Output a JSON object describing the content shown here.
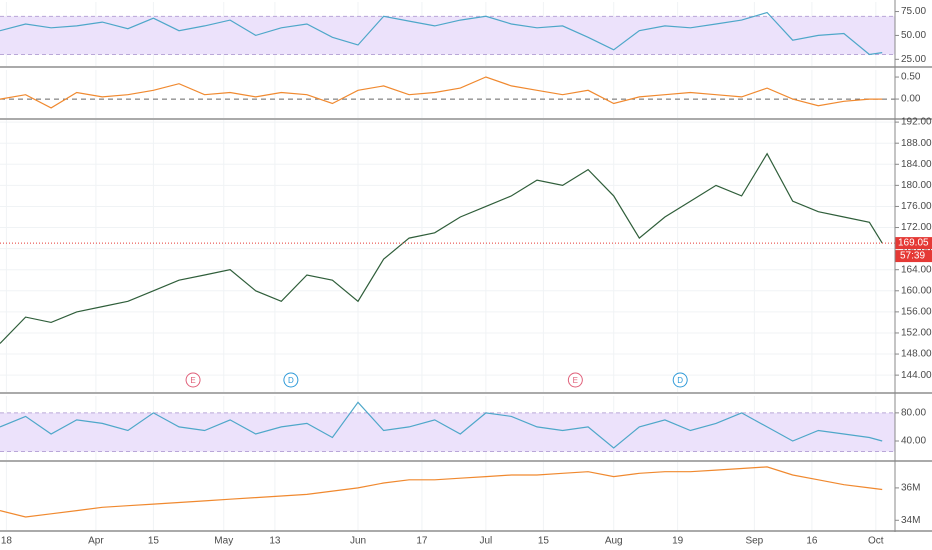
{
  "chart_data": [
    {
      "type": "line",
      "color": "#4ea7c9",
      "band": [
        30,
        70
      ],
      "band_color": "#ece2fb",
      "x": [
        0,
        4,
        8,
        12,
        16,
        20,
        24,
        28,
        32,
        36,
        40,
        44,
        48,
        52,
        56,
        60,
        64,
        68,
        72,
        76,
        80,
        84,
        88,
        92,
        96,
        100,
        104,
        108,
        112,
        116,
        120,
        124,
        128,
        132,
        136,
        138
      ],
      "values": [
        55,
        62,
        58,
        60,
        64,
        57,
        68,
        55,
        60,
        66,
        50,
        58,
        62,
        48,
        40,
        70,
        65,
        60,
        66,
        70,
        62,
        58,
        60,
        48,
        35,
        55,
        60,
        58,
        62,
        66,
        74,
        45,
        50,
        52,
        30,
        32
      ],
      "ylim": [
        18,
        85
      ],
      "yticks": [
        {
          "value": 75,
          "label": "75.00"
        },
        {
          "value": 50,
          "label": "50.00"
        },
        {
          "value": 25,
          "label": "25.00"
        }
      ]
    },
    {
      "type": "line",
      "color": "#f0892f",
      "reference_line": 0,
      "x": [
        0,
        4,
        8,
        12,
        16,
        20,
        24,
        28,
        32,
        36,
        40,
        44,
        48,
        52,
        56,
        60,
        64,
        68,
        72,
        76,
        80,
        84,
        88,
        92,
        96,
        100,
        104,
        108,
        112,
        116,
        120,
        124,
        128,
        132,
        136,
        138
      ],
      "values": [
        0,
        0.1,
        -0.2,
        0.15,
        0.05,
        0.1,
        0.2,
        0.35,
        0.1,
        0.15,
        0.05,
        0.15,
        0.1,
        -0.1,
        0.2,
        0.3,
        0.1,
        0.15,
        0.25,
        0.5,
        0.3,
        0.2,
        0.1,
        0.2,
        -0.1,
        0.05,
        0.1,
        0.15,
        0.1,
        0.05,
        0.25,
        0,
        -0.15,
        -0.05,
        0,
        0
      ],
      "ylim": [
        -0.43,
        0.66
      ],
      "yticks": [
        {
          "value": 0.5,
          "label": "0.50"
        },
        {
          "value": 0,
          "label": "0.00"
        }
      ]
    },
    {
      "type": "line",
      "color": "#2f5e3a",
      "last_price": 169.05,
      "last_price_color": "#e53935",
      "countdown": "57:39",
      "events": [
        {
          "label": "E",
          "x": 30.2,
          "color": "#e0607a"
        },
        {
          "label": "D",
          "x": 45.5,
          "color": "#2f9ad8"
        },
        {
          "label": "E",
          "x": 90,
          "color": "#e0607a"
        },
        {
          "label": "D",
          "x": 106.4,
          "color": "#2f9ad8"
        }
      ],
      "x": [
        0,
        4,
        8,
        12,
        16,
        20,
        24,
        28,
        32,
        36,
        40,
        44,
        48,
        52,
        56,
        60,
        64,
        68,
        72,
        76,
        80,
        84,
        88,
        92,
        96,
        100,
        104,
        108,
        112,
        116,
        120,
        124,
        128,
        132,
        136,
        138
      ],
      "values": [
        150,
        155,
        154,
        156,
        157,
        158,
        160,
        162,
        163,
        164,
        160,
        158,
        163,
        162,
        158,
        166,
        170,
        171,
        174,
        176,
        178,
        181,
        180,
        183,
        178,
        170,
        174,
        177,
        180,
        178,
        186,
        177,
        175,
        174,
        173,
        169.05
      ],
      "ylim": [
        140.8,
        192.4
      ],
      "yticks": [
        {
          "value": 144,
          "label": "144.00"
        },
        {
          "value": 148,
          "label": "148.00"
        },
        {
          "value": 152,
          "label": "152.00"
        },
        {
          "value": 156,
          "label": "156.00"
        },
        {
          "value": 160,
          "label": "160.00"
        },
        {
          "value": 164,
          "label": "164.00"
        },
        {
          "value": 168,
          "label": "168.00"
        },
        {
          "value": 172,
          "label": "172.00"
        },
        {
          "value": 176,
          "label": "176.00"
        },
        {
          "value": 180,
          "label": "180.00"
        },
        {
          "value": 184,
          "label": "184.00"
        },
        {
          "value": 188,
          "label": "188.00"
        },
        {
          "value": 192,
          "label": "192.00"
        }
      ]
    },
    {
      "type": "line",
      "color": "#4ea7c9",
      "band": [
        25,
        80
      ],
      "band_color": "#ece2fb",
      "x": [
        0,
        4,
        8,
        12,
        16,
        20,
        24,
        28,
        32,
        36,
        40,
        44,
        48,
        52,
        56,
        60,
        64,
        68,
        72,
        76,
        80,
        84,
        88,
        92,
        96,
        100,
        104,
        108,
        112,
        116,
        120,
        124,
        128,
        132,
        136,
        138
      ],
      "values": [
        60,
        75,
        50,
        70,
        65,
        55,
        80,
        60,
        55,
        70,
        50,
        60,
        65,
        45,
        95,
        55,
        60,
        70,
        50,
        80,
        75,
        60,
        55,
        60,
        30,
        60,
        70,
        55,
        65,
        80,
        60,
        40,
        55,
        50,
        45,
        40
      ],
      "ylim": [
        13,
        104
      ],
      "yticks": [
        {
          "value": 80,
          "label": "80.00"
        },
        {
          "value": 40,
          "label": "40.00"
        }
      ]
    },
    {
      "type": "line",
      "color": "#f0892f",
      "x": [
        0,
        4,
        8,
        12,
        16,
        20,
        24,
        28,
        32,
        36,
        40,
        44,
        48,
        52,
        56,
        60,
        64,
        68,
        72,
        76,
        80,
        84,
        88,
        92,
        96,
        100,
        104,
        108,
        112,
        116,
        120,
        124,
        128,
        132,
        136,
        138
      ],
      "values": [
        34600000,
        34200000,
        34400000,
        34600000,
        34800000,
        34900000,
        35000000,
        35100000,
        35200000,
        35300000,
        35400000,
        35500000,
        35600000,
        35800000,
        36000000,
        36300000,
        36500000,
        36500000,
        36600000,
        36700000,
        36800000,
        36800000,
        36900000,
        37000000,
        36700000,
        36900000,
        37000000,
        37000000,
        37100000,
        37200000,
        37300000,
        36800000,
        36500000,
        36200000,
        36000000,
        35900000
      ],
      "ylim": [
        33400000,
        37600000
      ],
      "yticks": [
        {
          "value": 36000000,
          "label": "36M"
        },
        {
          "value": 34000000,
          "label": "34M"
        }
      ],
      "xlim": [
        0,
        140
      ],
      "xticks": [
        {
          "value": 1,
          "label": "18"
        },
        {
          "value": 15,
          "label": "Apr"
        },
        {
          "value": 24,
          "label": "15"
        },
        {
          "value": 35,
          "label": "May"
        },
        {
          "value": 43,
          "label": "13"
        },
        {
          "value": 56,
          "label": "Jun"
        },
        {
          "value": 66,
          "label": "17"
        },
        {
          "value": 76,
          "label": "Jul"
        },
        {
          "value": 85,
          "label": "15"
        },
        {
          "value": 96,
          "label": "Aug"
        },
        {
          "value": 106,
          "label": "19"
        },
        {
          "value": 118,
          "label": "Sep"
        },
        {
          "value": 127,
          "label": "16"
        },
        {
          "value": 137,
          "label": "Oct"
        }
      ]
    }
  ]
}
